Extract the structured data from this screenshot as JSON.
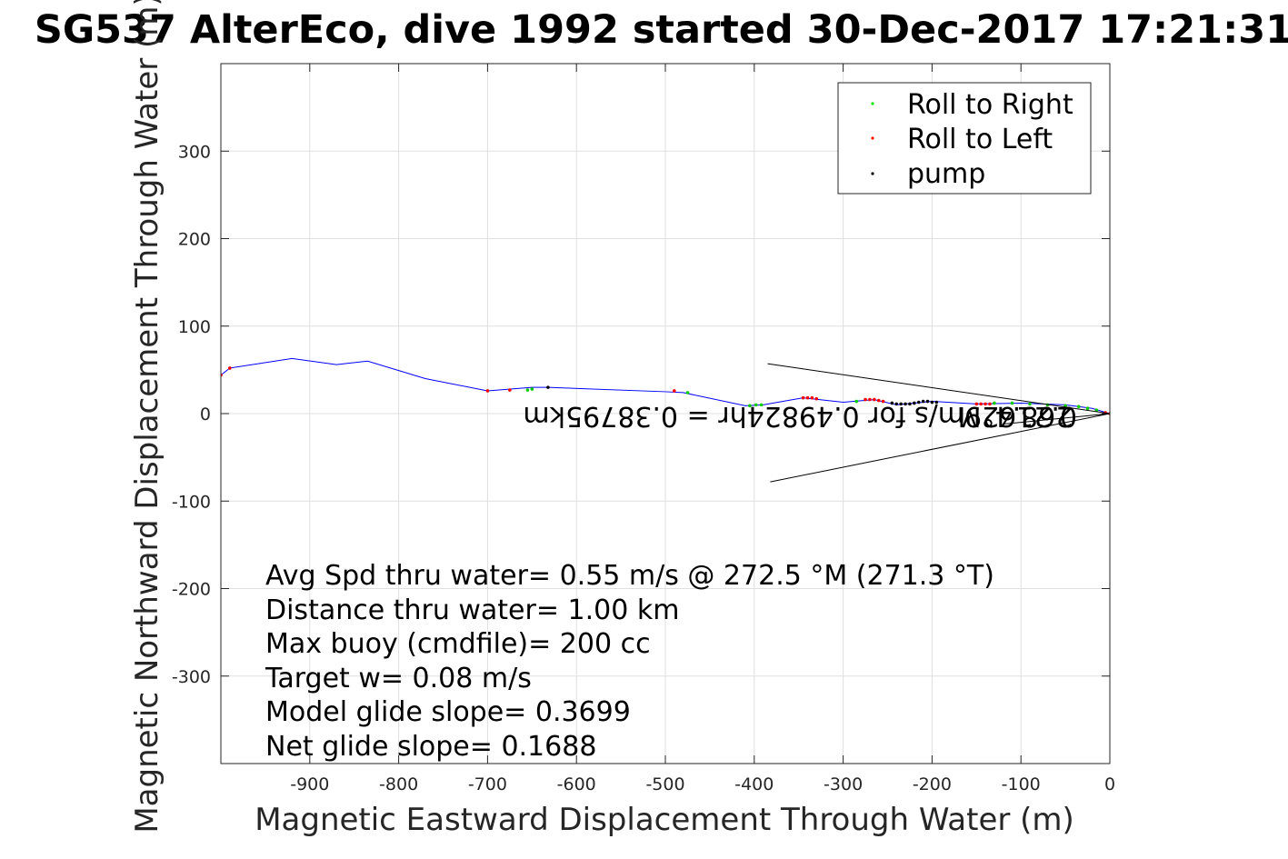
{
  "chart_data": {
    "type": "line",
    "title": "SG537 AlterEco, dive 1992 started 30-Dec-2017 17:21:31",
    "xlabel": "Magnetic Eastward Displacement Through Water (m)",
    "ylabel": "Magnetic Northward Displacement Through Water (m)",
    "xlim": [
      -1000,
      0
    ],
    "ylim": [
      -400,
      400
    ],
    "xticks": [
      "-900",
      "-800",
      "-700",
      "-600",
      "-500",
      "-400",
      "-300",
      "-200",
      "-100",
      "0"
    ],
    "xtick_values": [
      -900,
      -800,
      -700,
      -600,
      -500,
      -400,
      -300,
      -200,
      -100,
      0
    ],
    "yticks": [
      "300",
      "200",
      "100",
      "0",
      "-100",
      "-200",
      "-300"
    ],
    "ytick_values": [
      300,
      200,
      100,
      0,
      -100,
      -200,
      -300
    ],
    "grid": true,
    "legend_position": "top-right",
    "series": [
      {
        "name": "track",
        "color": "#0000ff",
        "x": [
          -1000,
          -990,
          -920,
          -870,
          -835,
          -770,
          -700,
          -650,
          -632,
          -500,
          -480,
          -410,
          -390,
          -345,
          -300,
          -265,
          -240,
          -200,
          -150,
          -100,
          -50,
          -20,
          0
        ],
        "y": [
          44,
          52,
          63,
          56,
          60,
          40,
          26,
          30,
          30,
          25,
          24,
          9,
          10,
          18,
          13,
          16,
          10,
          14,
          11,
          12,
          10,
          6,
          0
        ]
      },
      {
        "name": "Roll to Right",
        "color": "#00cc00",
        "x": [
          -655,
          -650,
          -475,
          -405,
          -398,
          -392,
          -285,
          -130,
          -110,
          -90,
          -70,
          -50,
          -35,
          -25,
          -15
        ],
        "y": [
          27,
          28,
          24,
          9,
          10,
          10,
          14,
          12,
          12,
          11,
          10,
          9,
          8,
          6,
          4
        ]
      },
      {
        "name": "Roll to Left",
        "color": "#ff0000",
        "x": [
          -1000,
          -990,
          -700,
          -675,
          -490,
          -345,
          -340,
          -335,
          -330,
          -275,
          -270,
          -265,
          -260,
          -255,
          -150,
          -145,
          -140,
          -135,
          -5,
          0
        ],
        "y": [
          44,
          52,
          26,
          27,
          26,
          18,
          18,
          18,
          17,
          16,
          16,
          16,
          15,
          14,
          11,
          11,
          11,
          11,
          1,
          0
        ]
      },
      {
        "name": "pump",
        "color": "#000000",
        "x": [
          -632,
          -245,
          -240,
          -235,
          -230,
          -225,
          -220,
          -215,
          -210,
          -205,
          -200,
          -195
        ],
        "y": [
          30,
          12,
          11,
          11,
          11,
          11,
          12,
          13,
          14,
          14,
          13,
          13
        ]
      },
      {
        "name": "cone-upper",
        "color": "#000000",
        "x": [
          -385,
          0
        ],
        "y": [
          57,
          0
        ]
      },
      {
        "name": "cone-lower",
        "color": "#000000",
        "x": [
          -382,
          0
        ],
        "y": [
          -78,
          0
        ]
      },
      {
        "name": "cone-mid",
        "color": "#000000",
        "x": [
          -120,
          0
        ],
        "y": [
          -12,
          0
        ]
      }
    ],
    "legend": [
      "Roll to Right",
      "Roll to Left",
      "pump"
    ],
    "flipped_labels": [
      "268.4°M",
      "0.21629m/s for 0.49824hr = 0.38795km"
    ],
    "annotations": [
      "Avg Spd thru water=  0.55 m/s @ 272.5 °M (271.3 °T)",
      "Distance thru water=  1.00 km",
      "Max buoy (cmdfile)= 200 cc",
      "Target w= 0.08 m/s",
      "Model glide slope= 0.3699",
      "Net glide slope= 0.1688"
    ]
  }
}
